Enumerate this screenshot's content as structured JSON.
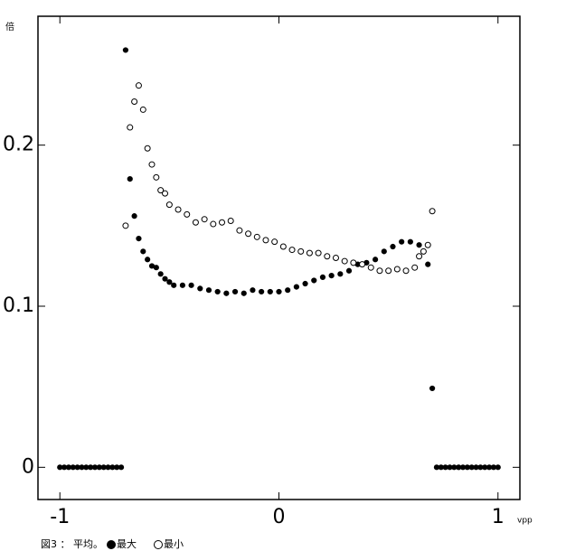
{
  "chart_data": {
    "type": "scatter",
    "y_unit": "倍",
    "x_unit": "vpp",
    "caption": "図3 ： 平均。",
    "xlim": [
      -1.1,
      1.1
    ],
    "ylim": [
      -0.02,
      0.28
    ],
    "xticks": [
      -1,
      0,
      1
    ],
    "yticks": [
      0,
      0.1,
      0.2
    ],
    "series": [
      {
        "name": "最大",
        "color": "#000000",
        "marker": "filled",
        "x": [
          -1,
          -0.98,
          -0.96,
          -0.94,
          -0.92,
          -0.9,
          -0.88,
          -0.86,
          -0.84,
          -0.82,
          -0.8,
          -0.78,
          -0.76,
          -0.74,
          -0.72,
          -0.7,
          -0.68,
          -0.66,
          -0.64,
          -0.62,
          -0.6,
          -0.58,
          -0.56,
          -0.54,
          -0.52,
          -0.5,
          -0.48,
          -0.44,
          -0.4,
          -0.36,
          -0.32,
          -0.28,
          -0.24,
          -0.2,
          -0.16,
          -0.12,
          -0.08,
          -0.04,
          0,
          0.04,
          0.08,
          0.12,
          0.16,
          0.2,
          0.24,
          0.28,
          0.32,
          0.36,
          0.4,
          0.44,
          0.48,
          0.52,
          0.56,
          0.6,
          0.64,
          0.68,
          0.7,
          0.72,
          0.74,
          0.76,
          0.78,
          0.8,
          0.82,
          0.84,
          0.86,
          0.88,
          0.9,
          0.92,
          0.94,
          0.96,
          0.98,
          1
        ],
        "values": [
          0,
          0,
          0,
          0,
          0,
          0,
          0,
          0,
          0,
          0,
          0,
          0,
          0,
          0,
          0,
          0.259,
          0.179,
          0.156,
          0.142,
          0.134,
          0.129,
          0.125,
          0.124,
          0.12,
          0.117,
          0.115,
          0.113,
          0.113,
          0.113,
          0.111,
          0.11,
          0.109,
          0.108,
          0.109,
          0.108,
          0.11,
          0.109,
          0.109,
          0.109,
          0.11,
          0.112,
          0.114,
          0.116,
          0.118,
          0.119,
          0.12,
          0.122,
          0.126,
          0.127,
          0.129,
          0.134,
          0.137,
          0.14,
          0.14,
          0.138,
          0.126,
          0.049,
          0,
          0,
          0,
          0,
          0,
          0,
          0,
          0,
          0,
          0,
          0,
          0,
          0,
          0,
          0
        ]
      },
      {
        "name": "最小",
        "color": "#000000",
        "marker": "open",
        "x": [
          -0.7,
          -0.68,
          -0.66,
          -0.64,
          -0.62,
          -0.6,
          -0.58,
          -0.56,
          -0.54,
          -0.52,
          -0.5,
          -0.46,
          -0.42,
          -0.38,
          -0.34,
          -0.3,
          -0.26,
          -0.22,
          -0.18,
          -0.14,
          -0.1,
          -0.06,
          -0.02,
          0.02,
          0.06,
          0.1,
          0.14,
          0.18,
          0.22,
          0.26,
          0.3,
          0.34,
          0.38,
          0.42,
          0.46,
          0.5,
          0.54,
          0.58,
          0.62,
          0.64,
          0.66,
          0.68,
          0.7
        ],
        "values": [
          0.15,
          0.211,
          0.227,
          0.237,
          0.222,
          0.198,
          0.188,
          0.18,
          0.172,
          0.17,
          0.163,
          0.16,
          0.157,
          0.152,
          0.154,
          0.151,
          0.152,
          0.153,
          0.147,
          0.145,
          0.143,
          0.141,
          0.14,
          0.137,
          0.135,
          0.134,
          0.133,
          0.133,
          0.131,
          0.13,
          0.128,
          0.127,
          0.126,
          0.124,
          0.122,
          0.122,
          0.123,
          0.122,
          0.124,
          0.131,
          0.134,
          0.138,
          0.159
        ]
      }
    ]
  }
}
